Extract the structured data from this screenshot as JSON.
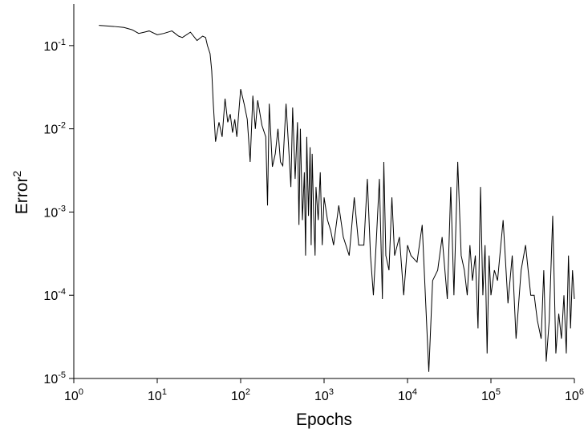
{
  "chart_data": {
    "type": "line",
    "x_label": "Epochs",
    "y_label": "Error",
    "y_label_sup": "2",
    "x_scale": "log",
    "y_scale": "log",
    "grid": false,
    "xlim": [
      1,
      1000000
    ],
    "ylim": [
      1e-05,
      0.316
    ],
    "xticks": [
      {
        "value": 1,
        "label": "10",
        "exp": "0"
      },
      {
        "value": 10,
        "label": "10",
        "exp": "1"
      },
      {
        "value": 100,
        "label": "10",
        "exp": "2"
      },
      {
        "value": 1000,
        "label": "10",
        "exp": "3"
      },
      {
        "value": 10000,
        "label": "10",
        "exp": "4"
      },
      {
        "value": 100000,
        "label": "10",
        "exp": "5"
      },
      {
        "value": 1000000,
        "label": "10",
        "exp": "6"
      }
    ],
    "yticks": [
      {
        "value": 1e-05,
        "label": "10",
        "exp": "-5"
      },
      {
        "value": 0.0001,
        "label": "10",
        "exp": "-4"
      },
      {
        "value": 0.001,
        "label": "10",
        "exp": "-3"
      },
      {
        "value": 0.01,
        "label": "10",
        "exp": "-2"
      },
      {
        "value": 0.1,
        "label": "10",
        "exp": "-1"
      }
    ],
    "series": [
      {
        "color": "#000000",
        "x": [
          2,
          3,
          4,
          5,
          6,
          7,
          8,
          10,
          12,
          15,
          18,
          20,
          25,
          30,
          35,
          38,
          40,
          43,
          45,
          47,
          50,
          55,
          60,
          65,
          70,
          75,
          80,
          85,
          90,
          100,
          110,
          120,
          130,
          140,
          150,
          160,
          180,
          200,
          210,
          220,
          240,
          260,
          280,
          300,
          320,
          350,
          380,
          400,
          420,
          450,
          480,
          500,
          520,
          550,
          580,
          600,
          620,
          650,
          680,
          700,
          720,
          750,
          780,
          800,
          850,
          900,
          950,
          1000,
          1100,
          1200,
          1300,
          1500,
          1700,
          2000,
          2300,
          2600,
          3000,
          3300,
          3600,
          3900,
          4200,
          4600,
          5000,
          5200,
          5500,
          6000,
          6500,
          7000,
          8000,
          9000,
          10000,
          11000,
          13000,
          15000,
          18000,
          20000,
          23000,
          26000,
          30000,
          33000,
          36000,
          40000,
          44000,
          48000,
          52000,
          56000,
          60000,
          65000,
          70000,
          75000,
          80000,
          85000,
          90000,
          95000,
          100000,
          110000,
          120000,
          140000,
          160000,
          180000,
          200000,
          230000,
          260000,
          300000,
          330000,
          360000,
          400000,
          430000,
          460000,
          500000,
          550000,
          600000,
          650000,
          700000,
          750000,
          800000,
          850000,
          900000,
          950000,
          1000000
        ],
        "values": [
          0.175,
          0.17,
          0.165,
          0.155,
          0.14,
          0.145,
          0.15,
          0.135,
          0.14,
          0.15,
          0.13,
          0.125,
          0.145,
          0.115,
          0.13,
          0.125,
          0.1,
          0.08,
          0.05,
          0.02,
          0.007,
          0.012,
          0.008,
          0.023,
          0.012,
          0.015,
          0.009,
          0.013,
          0.008,
          0.03,
          0.02,
          0.013,
          0.004,
          0.025,
          0.01,
          0.022,
          0.011,
          0.008,
          0.0012,
          0.02,
          0.0035,
          0.005,
          0.01,
          0.004,
          0.0036,
          0.02,
          0.005,
          0.002,
          0.018,
          0.0025,
          0.012,
          0.0007,
          0.01,
          0.0008,
          0.003,
          0.0003,
          0.008,
          0.0009,
          0.006,
          0.0004,
          0.005,
          0.0009,
          0.0003,
          0.002,
          0.0008,
          0.003,
          0.0004,
          0.0015,
          0.0008,
          0.0006,
          0.0004,
          0.0012,
          0.0005,
          0.0003,
          0.0015,
          0.0004,
          0.0004,
          0.0025,
          0.0003,
          0.0001,
          0.0004,
          0.0025,
          9e-05,
          0.004,
          0.0003,
          0.0002,
          0.0015,
          0.0003,
          0.0005,
          0.0001,
          0.0004,
          0.0003,
          0.00025,
          0.0007,
          1.2e-05,
          0.00015,
          0.0002,
          0.0005,
          9e-05,
          0.002,
          0.0001,
          0.004,
          0.0003,
          0.0002,
          0.0001,
          0.0004,
          0.00015,
          0.0003,
          4e-05,
          0.002,
          0.0001,
          0.0004,
          2e-05,
          0.0003,
          0.0001,
          0.0002,
          0.00015,
          0.0008,
          8e-05,
          0.0003,
          3e-05,
          0.0002,
          0.0004,
          0.0001,
          0.0001,
          5e-05,
          3e-05,
          0.0002,
          1.6e-05,
          5e-05,
          0.0009,
          2e-05,
          6e-05,
          3e-05,
          0.0001,
          2e-05,
          0.0003,
          4e-05,
          0.0002,
          9e-05
        ]
      }
    ]
  }
}
